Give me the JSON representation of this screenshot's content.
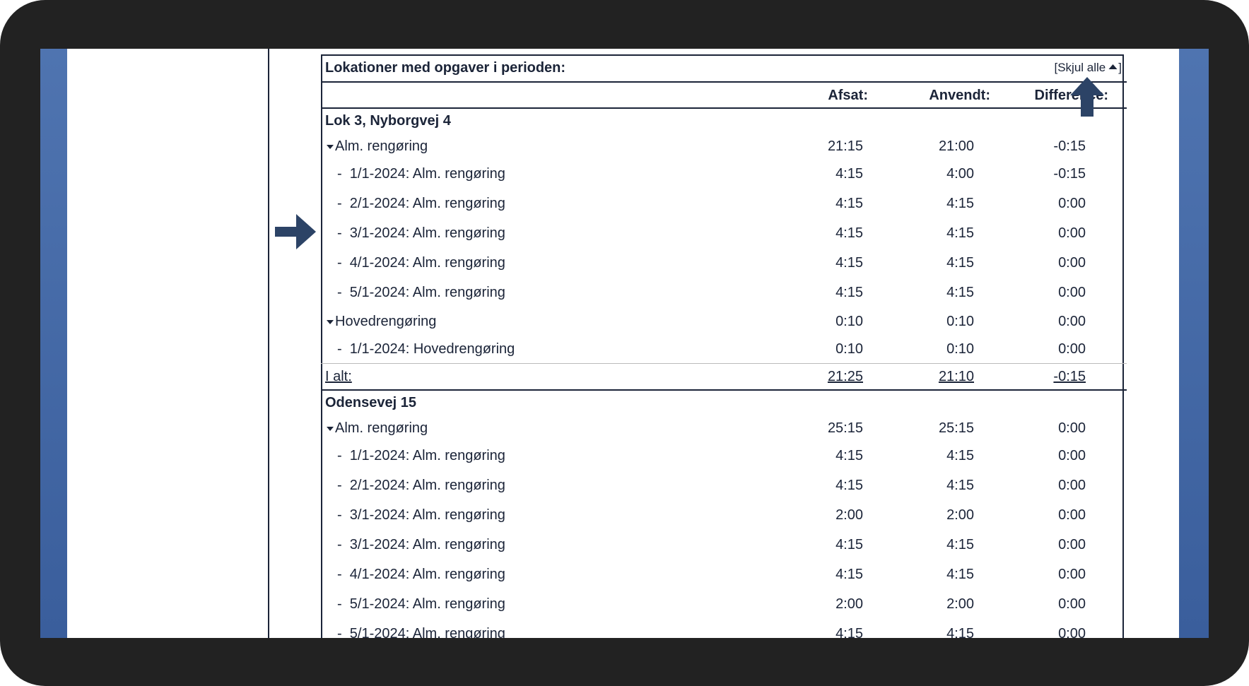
{
  "header": {
    "title": "Lokationer med opgaver i perioden:",
    "toggle": "[Skjul alle",
    "toggle_end": "]"
  },
  "columns": [
    "Afsat:",
    "Anvendt:",
    "Difference:"
  ],
  "locations": [
    {
      "name": "Lok 3, Nyborgvej 4",
      "groups": [
        {
          "name": "Alm. rengøring",
          "totals": [
            "21:15",
            "21:00",
            "-0:15"
          ],
          "items": [
            {
              "label": "1/1-2024: Alm. rengøring",
              "values": [
                "4:15",
                "4:00",
                "-0:15"
              ]
            },
            {
              "label": "2/1-2024: Alm. rengøring",
              "values": [
                "4:15",
                "4:15",
                "0:00"
              ]
            },
            {
              "label": "3/1-2024: Alm. rengøring",
              "values": [
                "4:15",
                "4:15",
                "0:00"
              ]
            },
            {
              "label": "4/1-2024: Alm. rengøring",
              "values": [
                "4:15",
                "4:15",
                "0:00"
              ]
            },
            {
              "label": "5/1-2024: Alm. rengøring",
              "values": [
                "4:15",
                "4:15",
                "0:00"
              ]
            }
          ]
        },
        {
          "name": "Hovedrengøring",
          "totals": [
            "0:10",
            "0:10",
            "0:00"
          ],
          "items": [
            {
              "label": "1/1-2024: Hovedrengøring",
              "values": [
                "0:10",
                "0:10",
                "0:00"
              ]
            }
          ]
        }
      ],
      "total": {
        "label": "I alt:",
        "values": [
          "21:25",
          "21:10",
          "-0:15"
        ]
      }
    },
    {
      "name": "Odensevej 15",
      "groups": [
        {
          "name": "Alm. rengøring",
          "totals": [
            "25:15",
            "25:15",
            "0:00"
          ],
          "items": [
            {
              "label": "1/1-2024: Alm. rengøring",
              "values": [
                "4:15",
                "4:15",
                "0:00"
              ]
            },
            {
              "label": "2/1-2024: Alm. rengøring",
              "values": [
                "4:15",
                "4:15",
                "0:00"
              ]
            },
            {
              "label": "3/1-2024: Alm. rengøring",
              "values": [
                "2:00",
                "2:00",
                "0:00"
              ]
            },
            {
              "label": "3/1-2024: Alm. rengøring",
              "values": [
                "4:15",
                "4:15",
                "0:00"
              ]
            },
            {
              "label": "4/1-2024: Alm. rengøring",
              "values": [
                "4:15",
                "4:15",
                "0:00"
              ]
            },
            {
              "label": "5/1-2024: Alm. rengøring",
              "values": [
                "2:00",
                "2:00",
                "0:00"
              ]
            },
            {
              "label": "5/1-2024: Alm. rengøring",
              "values": [
                "4:15",
                "4:15",
                "0:00"
              ]
            }
          ]
        }
      ]
    }
  ]
}
